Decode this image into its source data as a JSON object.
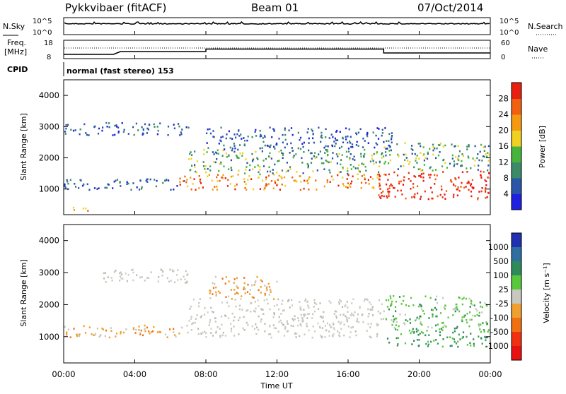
{
  "header": {
    "title": "Pykkvibaer (fitACF)",
    "beam": "Beam 01",
    "date": "07/Oct/2014"
  },
  "status_panels": {
    "nsky_label": "N.Sky",
    "nsearch_label": "N.Search",
    "noise_ticks": [
      "10^5",
      "10^0"
    ],
    "freq_label_line1": "Freq.",
    "freq_label_line2": "[MHz]",
    "freq_ticks": [
      "18",
      "8"
    ],
    "nave_label": "Nave",
    "nave_ticks": [
      "60",
      "0"
    ],
    "cpid_label": "CPID",
    "cpid_text": "normal (fast stereo) 153"
  },
  "chart_data": [
    {
      "type": "heatmap",
      "title": "",
      "xlabel": "Time UT",
      "ylabel": "Slant Range [km]",
      "xlim": [
        "00:00",
        "24:00"
      ],
      "ylim": [
        180,
        4500
      ],
      "x_tick_labels": [
        "00:00",
        "04:00",
        "08:00",
        "12:00",
        "16:00",
        "20:00",
        "00:00"
      ],
      "y_tick_labels": [
        "1000",
        "2000",
        "3000",
        "4000"
      ],
      "colorbar": {
        "label": "Power [dB]",
        "tick_labels": [
          "4",
          "8",
          "12",
          "16",
          "20",
          "24",
          "28"
        ],
        "colors": [
          "#2020e0",
          "#2a55a8",
          "#3b8a68",
          "#46b43c",
          "#f0d020",
          "#f59a10",
          "#f06010",
          "#e82010"
        ]
      },
      "regions": [
        {
          "t0": 0.0,
          "t1": 7.0,
          "r0": 2750,
          "r1": 3150,
          "level": "low"
        },
        {
          "t0": 0.0,
          "t1": 7.0,
          "r0": 1000,
          "r1": 1350,
          "level": "low"
        },
        {
          "t0": 0.3,
          "t1": 1.5,
          "r0": 300,
          "r1": 450,
          "level": "high"
        },
        {
          "t0": 6.5,
          "t1": 18.0,
          "r0": 1000,
          "r1": 1500,
          "level": "high"
        },
        {
          "t0": 7.0,
          "t1": 18.0,
          "r0": 1500,
          "r1": 2300,
          "level": "mid"
        },
        {
          "t0": 8.0,
          "t1": 18.5,
          "r0": 2300,
          "r1": 3000,
          "level": "low"
        },
        {
          "t0": 17.5,
          "t1": 24.0,
          "r0": 700,
          "r1": 1600,
          "level": "max"
        },
        {
          "t0": 18.0,
          "t1": 24.0,
          "r0": 1600,
          "r1": 2500,
          "level": "mid"
        }
      ]
    },
    {
      "type": "heatmap",
      "title": "",
      "xlabel": "Time UT",
      "ylabel": "Slant Range [km]",
      "xlim": [
        "00:00",
        "24:00"
      ],
      "ylim": [
        180,
        4500
      ],
      "x_tick_labels": [
        "00:00",
        "04:00",
        "08:00",
        "12:00",
        "16:00",
        "20:00",
        "00:00"
      ],
      "y_tick_labels": [
        "1000",
        "2000",
        "3000",
        "4000"
      ],
      "colorbar": {
        "label": "Velocity [m s⁻¹]",
        "tick_labels": [
          "1000",
          "500",
          "100",
          "25",
          "-25",
          "-100",
          "-500",
          "-1000"
        ],
        "colors": [
          "#2030b0",
          "#2e6ea0",
          "#2e8a5a",
          "#5ac83c",
          "#c8c8c0",
          "#f0a030",
          "#f07010",
          "#f03010",
          "#e81010"
        ]
      },
      "regions": [
        {
          "t0": 2.0,
          "t1": 7.0,
          "r0": 2700,
          "r1": 3150,
          "level": "grey"
        },
        {
          "t0": 0.0,
          "t1": 7.0,
          "r0": 1000,
          "r1": 1400,
          "level": "orange"
        },
        {
          "t0": 7.0,
          "t1": 18.0,
          "r0": 1000,
          "r1": 2200,
          "level": "grey"
        },
        {
          "t0": 8.0,
          "t1": 12.0,
          "r0": 2200,
          "r1": 2900,
          "level": "orange"
        },
        {
          "t0": 18.0,
          "t1": 24.0,
          "r0": 700,
          "r1": 1300,
          "level": "darkgreen"
        },
        {
          "t0": 18.0,
          "t1": 24.0,
          "r0": 1300,
          "r1": 2300,
          "level": "lightgreen"
        }
      ]
    }
  ]
}
